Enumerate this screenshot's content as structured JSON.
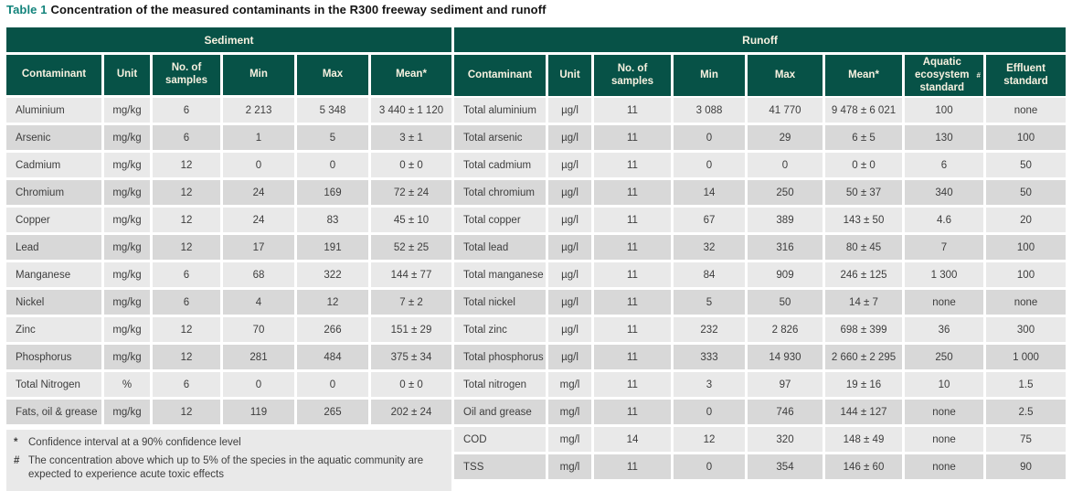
{
  "caption": {
    "label": "Table 1",
    "text": "Concentration of the measured contaminants in the R300 freeway sediment and runoff"
  },
  "colors": {
    "header_green": "#075247",
    "header_text": "#f7f1e0",
    "row_light": "#e9e9e9",
    "row_dark": "#d8d8d8",
    "caption_accent": "#12837b"
  },
  "sediment": {
    "section_title": "Sediment",
    "columns": [
      "Contaminant",
      "Unit",
      "No. of samples",
      "Min",
      "Max",
      "Mean*"
    ],
    "rows": [
      [
        "Aluminium",
        "mg/kg",
        "6",
        "2 213",
        "5 348",
        "3 440 ± 1 120"
      ],
      [
        "Arsenic",
        "mg/kg",
        "6",
        "1",
        "5",
        "3 ± 1"
      ],
      [
        "Cadmium",
        "mg/kg",
        "12",
        "0",
        "0",
        "0 ± 0"
      ],
      [
        "Chromium",
        "mg/kg",
        "12",
        "24",
        "169",
        "72 ± 24"
      ],
      [
        "Copper",
        "mg/kg",
        "12",
        "24",
        "83",
        "45 ± 10"
      ],
      [
        "Lead",
        "mg/kg",
        "12",
        "17",
        "191",
        "52 ± 25"
      ],
      [
        "Manganese",
        "mg/kg",
        "6",
        "68",
        "322",
        "144 ± 77"
      ],
      [
        "Nickel",
        "mg/kg",
        "6",
        "4",
        "12",
        "7 ± 2"
      ],
      [
        "Zinc",
        "mg/kg",
        "12",
        "70",
        "266",
        "151 ± 29"
      ],
      [
        "Phosphorus",
        "mg/kg",
        "12",
        "281",
        "484",
        "375 ± 34"
      ],
      [
        "Total Nitrogen",
        "%",
        "6",
        "0",
        "0",
        "0 ± 0"
      ],
      [
        "Fats, oil & grease",
        "mg/kg",
        "12",
        "119",
        "265",
        "202 ± 24"
      ]
    ],
    "footnotes": [
      {
        "marker": "*",
        "text": "Confidence interval at a 90% confidence level"
      },
      {
        "marker": "#",
        "text": "The concentration above which up to 5% of the species in the aquatic community are expected to experience acute toxic effects"
      }
    ]
  },
  "runoff": {
    "section_title": "Runoff",
    "columns": [
      "Contaminant",
      "Unit",
      "No. of samples",
      "Min",
      "Max",
      "Mean*",
      "Aquatic ecosystem standard#",
      "Effluent standard"
    ],
    "rows": [
      [
        "Total aluminium",
        "µg/l",
        "11",
        "3 088",
        "41 770",
        "9 478 ± 6 021",
        "100",
        "none"
      ],
      [
        "Total arsenic",
        "µg/l",
        "11",
        "0",
        "29",
        "6 ± 5",
        "130",
        "100"
      ],
      [
        "Total cadmium",
        "µg/l",
        "11",
        "0",
        "0",
        "0 ± 0",
        "6",
        "50"
      ],
      [
        "Total chromium",
        "µg/l",
        "11",
        "14",
        "250",
        "50 ± 37",
        "340",
        "50"
      ],
      [
        "Total copper",
        "µg/l",
        "11",
        "67",
        "389",
        "143 ± 50",
        "4.6",
        "20"
      ],
      [
        "Total lead",
        "µg/l",
        "11",
        "32",
        "316",
        "80 ± 45",
        "7",
        "100"
      ],
      [
        "Total manganese",
        "µg/l",
        "11",
        "84",
        "909",
        "246 ± 125",
        "1 300",
        "100"
      ],
      [
        "Total nickel",
        "µg/l",
        "11",
        "5",
        "50",
        "14 ± 7",
        "none",
        "none"
      ],
      [
        "Total zinc",
        "µg/l",
        "11",
        "232",
        "2 826",
        "698 ± 399",
        "36",
        "300"
      ],
      [
        "Total phosphorus",
        "µg/l",
        "11",
        "333",
        "14 930",
        "2 660 ± 2 295",
        "250",
        "1 000"
      ],
      [
        "Total nitrogen",
        "mg/l",
        "11",
        "3",
        "97",
        "19 ± 16",
        "10",
        "1.5"
      ],
      [
        "Oil and grease",
        "mg/l",
        "11",
        "0",
        "746",
        "144 ± 127",
        "none",
        "2.5"
      ],
      [
        "COD",
        "mg/l",
        "14",
        "12",
        "320",
        "148 ± 49",
        "none",
        "75"
      ],
      [
        "TSS",
        "mg/l",
        "11",
        "0",
        "354",
        "146 ± 60",
        "none",
        "90"
      ]
    ]
  }
}
